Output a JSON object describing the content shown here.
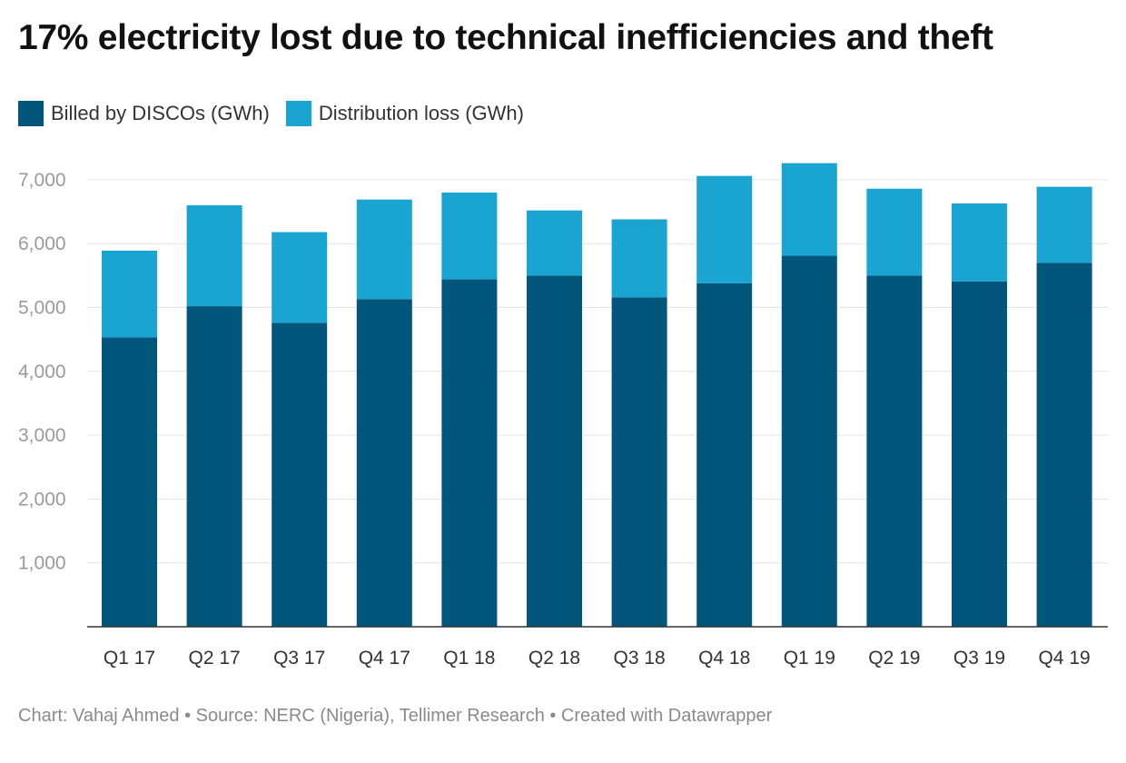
{
  "header": {
    "title": "17% electricity lost due to technical inefficiencies and theft"
  },
  "legend": [
    {
      "label": "Billed by DISCOs (GWh)",
      "color": "#02557b"
    },
    {
      "label": "Distribution loss (GWh)",
      "color": "#19a4d1"
    }
  ],
  "footer": {
    "credit": "Chart: Vahaj Ahmed • Source: NERC (Nigeria), Tellimer Research • Created with Datawrapper"
  },
  "chart_data": {
    "type": "bar",
    "stacked": true,
    "title": "17% electricity lost due to technical inefficiencies and theft",
    "xlabel": "",
    "ylabel": "",
    "ylim": [
      0,
      7300
    ],
    "yticks": [
      1000,
      2000,
      3000,
      4000,
      5000,
      6000,
      7000
    ],
    "ytick_labels": [
      "1,000",
      "2,000",
      "3,000",
      "4,000",
      "5,000",
      "6,000",
      "7,000"
    ],
    "grid": true,
    "legend_position": "top-left",
    "categories": [
      "Q1 17",
      "Q2 17",
      "Q3 17",
      "Q4 17",
      "Q1 18",
      "Q2 18",
      "Q3 18",
      "Q4 18",
      "Q1 19",
      "Q2 19",
      "Q3 19",
      "Q4 19"
    ],
    "series": [
      {
        "name": "Billed by DISCOs (GWh)",
        "color": "#02557b",
        "values": [
          4530,
          5020,
          4760,
          5130,
          5440,
          5500,
          5160,
          5380,
          5810,
          5500,
          5410,
          5700
        ]
      },
      {
        "name": "Distribution loss (GWh)",
        "color": "#19a4d1",
        "values": [
          1360,
          1580,
          1420,
          1560,
          1360,
          1020,
          1220,
          1680,
          1450,
          1360,
          1220,
          1190
        ]
      }
    ]
  }
}
